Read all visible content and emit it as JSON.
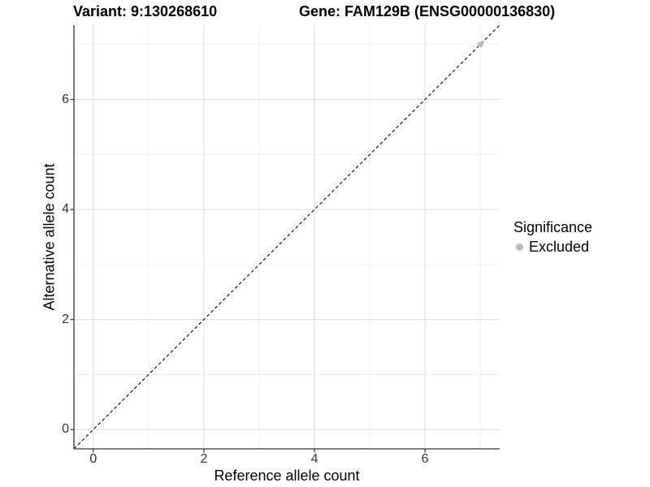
{
  "figure": {
    "title_left": "Variant: 9:130268610",
    "title_right": "Gene: FAM129B (ENSG00000136830)"
  },
  "chart_data": {
    "type": "scatter",
    "xlabel": "Reference allele count",
    "ylabel": "Alternative allele count",
    "xlim": [
      -0.35,
      7.35
    ],
    "ylim": [
      -0.35,
      7.35
    ],
    "x_major_ticks": [
      0,
      2,
      4,
      6
    ],
    "y_major_ticks": [
      0,
      2,
      4,
      6
    ],
    "x_minor_ticks": [
      1,
      3,
      5,
      7
    ],
    "y_minor_ticks": [
      1,
      3,
      5,
      7
    ],
    "grid": true,
    "legend_position": "right",
    "reference_line": {
      "slope": 1,
      "intercept": 0,
      "style": "dashed"
    },
    "series": [
      {
        "name": "Excluded",
        "color": "#bcbcbc",
        "points": [
          {
            "x": 7,
            "y": 7
          }
        ]
      }
    ],
    "legend": {
      "title": "Significance",
      "entries": [
        {
          "label": "Excluded",
          "color": "#bcbcbc"
        }
      ]
    }
  },
  "colors": {
    "background": "#ffffff",
    "grid_major": "#e3e3e3",
    "grid_minor": "#f0f0f0",
    "axis_line": "#333333",
    "tick_mark": "#333333",
    "tick_label": "#333333",
    "reference_line": "#1a1a1a",
    "title_text": "#000000"
  }
}
